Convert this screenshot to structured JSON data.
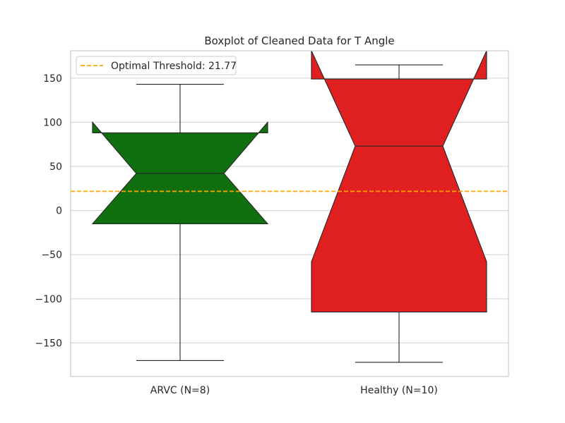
{
  "chart_data": {
    "type": "boxplot",
    "title": "Boxplot of Cleaned Data for T Angle",
    "xlabel": "",
    "ylabel": "",
    "ylim": [
      -188,
      181
    ],
    "yticks": [
      -150,
      -100,
      -50,
      0,
      50,
      100,
      150
    ],
    "grid": "horizontal",
    "notched": true,
    "legend": {
      "placement": "top-left",
      "entries": [
        "Optimal Threshold: 21.77"
      ]
    },
    "threshold": {
      "value": 21.77,
      "label": "Optimal Threshold: 21.77",
      "color": "#ffa500",
      "style": "dashed"
    },
    "series": [
      {
        "category": "ARVC (N=8)",
        "color": "#107010",
        "whisker_low": -170,
        "q1": -15,
        "median": 42,
        "q3": 88,
        "whisker_high": 143,
        "notch_low": -15,
        "notch_high": 100
      },
      {
        "category": "Healthy (N=10)",
        "color": "#e02020",
        "whisker_low": -172,
        "q1": -115,
        "median": 73,
        "q3": 149,
        "whisker_high": 165,
        "notch_low": -58,
        "notch_high": 181
      }
    ]
  }
}
